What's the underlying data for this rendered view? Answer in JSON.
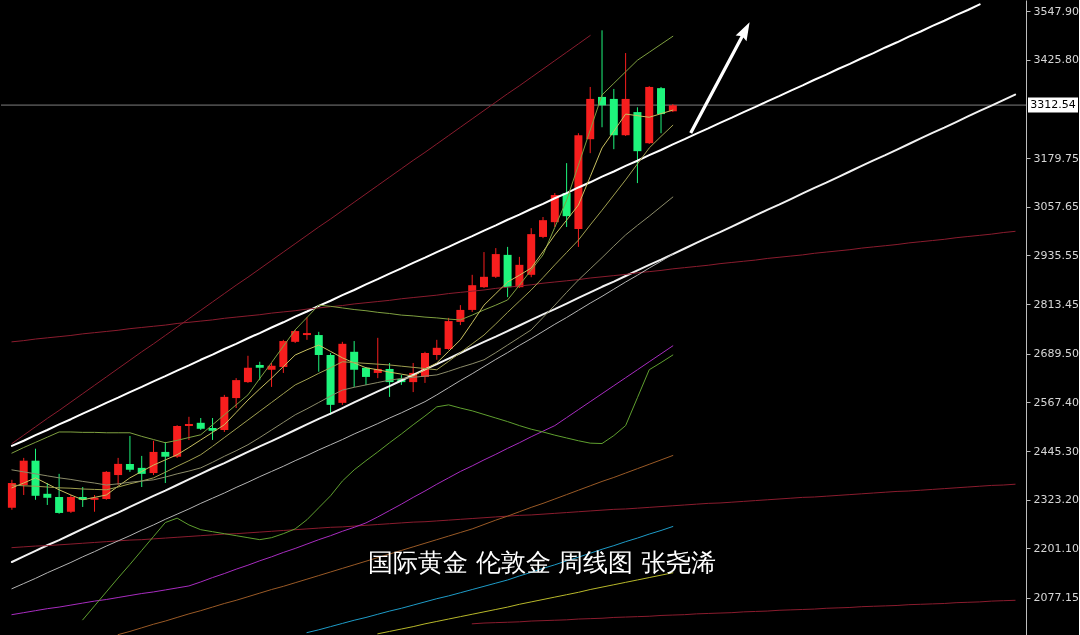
{
  "chart_data": {
    "type": "candlestick",
    "title": "国际黄金 伦敦金 周线图 张尧浠",
    "tick_labels": "y",
    "categories": [
      null,
      null,
      null,
      null,
      null,
      null,
      null,
      null,
      null,
      null,
      null,
      null,
      null,
      null,
      null,
      null,
      null,
      null,
      null,
      null,
      null,
      null,
      null,
      null,
      null,
      null,
      null,
      null,
      null,
      null,
      null,
      null,
      null,
      null,
      null,
      null,
      null,
      null,
      null,
      null,
      null,
      null,
      null,
      null,
      null,
      null,
      null,
      null,
      null,
      null,
      null,
      null,
      null,
      null,
      null,
      null,
      null,
      null,
      null,
      null,
      null,
      null,
      null,
      null,
      null,
      null,
      null,
      null,
      null,
      null,
      null,
      null,
      null,
      null,
      null,
      null,
      null,
      null,
      null,
      null,
      null,
      null,
      null,
      null,
      null,
      null
    ],
    "ylim": [
      1984,
      3576
    ],
    "yticks": [
      {
        "value": 3547.9,
        "label": "3547.90"
      },
      {
        "value": 3425.8,
        "label": "3425.80"
      },
      3179.75,
      3057.65,
      2935.55,
      2813.45,
      {
        "value": 2689.5,
        "label": "2689.50"
      },
      {
        "value": 2567.4,
        "label": "2567.40"
      },
      {
        "value": 2445.3,
        "label": "2445.30"
      },
      {
        "value": 2323.2,
        "label": "2323.20"
      },
      {
        "value": 2201.1,
        "label": "2201.10"
      },
      2077.15
    ],
    "ref_lines": [
      {
        "axis": "y",
        "value": 3312.54,
        "label": "3312.54",
        "color": "#7f7f7f"
      }
    ],
    "ohlc": [
      [
        2303,
        2373,
        2298,
        2365
      ],
      [
        2360,
        2428,
        2335,
        2421
      ],
      [
        2421,
        2451,
        2323,
        2333
      ],
      [
        2338,
        2365,
        2310,
        2328
      ],
      [
        2330,
        2388,
        2288,
        2290
      ],
      [
        2293,
        2335,
        2290,
        2330
      ],
      [
        2330,
        2355,
        2305,
        2323
      ],
      [
        2323,
        2335,
        2293,
        2328
      ],
      [
        2325,
        2395,
        2323,
        2393
      ],
      [
        2385,
        2428,
        2360,
        2413
      ],
      [
        2413,
        2483,
        2393,
        2398
      ],
      [
        2403,
        2433,
        2355,
        2388
      ],
      [
        2390,
        2471,
        2385,
        2443
      ],
      [
        2443,
        2468,
        2365,
        2431
      ],
      [
        2431,
        2510,
        2428,
        2508
      ],
      [
        2508,
        2531,
        2473,
        2513
      ],
      [
        2516,
        2528,
        2498,
        2501
      ],
      [
        2503,
        2528,
        2473,
        2496
      ],
      [
        2498,
        2586,
        2493,
        2581
      ],
      [
        2578,
        2628,
        2553,
        2623
      ],
      [
        2618,
        2684,
        2616,
        2654
      ],
      [
        2661,
        2669,
        2623,
        2654
      ],
      [
        2649,
        2666,
        2606,
        2659
      ],
      [
        2656,
        2724,
        2641,
        2721
      ],
      [
        2719,
        2749,
        2716,
        2746
      ],
      [
        2736,
        2781,
        2724,
        2741
      ],
      [
        2736,
        2744,
        2644,
        2686
      ],
      [
        2686,
        2691,
        2536,
        2561
      ],
      [
        2566,
        2719,
        2561,
        2714
      ],
      [
        2694,
        2721,
        2606,
        2649
      ],
      [
        2654,
        2656,
        2611,
        2631
      ],
      [
        2641,
        2729,
        2628,
        2651
      ],
      [
        2651,
        2666,
        2581,
        2618
      ],
      [
        2626,
        2636,
        2611,
        2618
      ],
      [
        2618,
        2666,
        2593,
        2641
      ],
      [
        2631,
        2694,
        2616,
        2691
      ],
      [
        2686,
        2724,
        2674,
        2704
      ],
      [
        2701,
        2779,
        2699,
        2771
      ],
      [
        2769,
        2811,
        2761,
        2799
      ],
      [
        2799,
        2887,
        2794,
        2861
      ],
      [
        2856,
        2944,
        2854,
        2882
      ],
      [
        2882,
        2954,
        2879,
        2939
      ],
      [
        2937,
        2957,
        2831,
        2856
      ],
      [
        2856,
        2932,
        2854,
        2912
      ],
      [
        2887,
        3004,
        2881,
        2989
      ],
      [
        2982,
        3032,
        2979,
        3024
      ],
      [
        3019,
        3092,
        3007,
        3087
      ],
      [
        3092,
        3167,
        3007,
        3034
      ],
      [
        3002,
        3242,
        2957,
        3237
      ],
      [
        3227,
        3358,
        3192,
        3328
      ],
      [
        3333,
        3500,
        3257,
        3312
      ],
      [
        3328,
        3353,
        3202,
        3237
      ],
      [
        3237,
        3443,
        3235,
        3328
      ],
      [
        3295,
        3307,
        3117,
        3197
      ],
      [
        3217,
        3360,
        3215,
        3358
      ],
      [
        3355,
        3358,
        3242,
        3290
      ],
      [
        3297,
        3315,
        3295,
        3312
      ],
      null,
      null,
      null,
      null,
      null,
      null,
      null,
      null,
      null,
      null,
      null,
      null,
      null,
      null,
      null,
      null,
      null,
      null,
      null,
      null,
      null,
      null,
      null,
      null,
      null,
      null,
      null,
      null,
      null
    ],
    "colors": [
      "#f71e1e",
      "#f71e1e",
      "#1ef57c",
      "#1ef57c",
      "#1ef57c",
      "#f71e1e",
      "#1ef57c",
      "#f71e1e",
      "#f71e1e",
      "#f71e1e",
      "#1ef57c",
      "#1ef57c",
      "#f71e1e",
      "#1ef57c",
      "#f71e1e",
      "#f71e1e",
      "#1ef57c",
      "#1ef57c",
      "#f71e1e",
      "#f71e1e",
      "#f71e1e",
      "#1ef57c",
      "#f71e1e",
      "#f71e1e",
      "#f71e1e",
      "#f71e1e",
      "#1ef57c",
      "#1ef57c",
      "#f71e1e",
      "#1ef57c",
      "#1ef57c",
      "#f71e1e",
      "#1ef57c",
      "#1ef57c",
      "#f71e1e",
      "#f71e1e",
      "#f71e1e",
      "#f71e1e",
      "#f71e1e",
      "#f71e1e",
      "#f71e1e",
      "#f71e1e",
      "#1ef57c",
      "#f71e1e",
      "#f71e1e",
      "#f71e1e",
      "#f71e1e",
      "#1ef57c",
      "#f71e1e",
      "#f71e1e",
      "#1ef57c",
      "#1ef57c",
      "#f71e1e",
      "#1ef57c",
      "#f71e1e",
      "#1ef57c",
      "#f71e1e",
      null,
      null,
      null,
      null,
      null,
      null,
      null,
      null,
      null,
      null,
      null,
      null,
      null,
      null,
      null,
      null,
      null,
      null,
      null,
      null,
      null,
      null,
      null,
      null,
      null,
      null,
      null,
      null,
      null
    ],
    "series": [
      {
        "type": "line",
        "color": "#ffffff",
        "values": [
          2458,
          2471,
          2485,
          2498,
          2512,
          2525,
          2539,
          2552,
          2566,
          2579,
          2593,
          2606,
          2620,
          2633,
          2647,
          2660,
          2674,
          2687,
          2701,
          2714,
          2728,
          2741,
          2755,
          2768,
          2782,
          2795,
          2809,
          2822,
          2836,
          2849,
          2863,
          2876,
          2890,
          2903,
          2917,
          2930,
          2944,
          2957,
          2971,
          2984,
          2998,
          3011,
          3025,
          3038,
          3052,
          3065,
          3079,
          3092,
          3106,
          3119,
          3133,
          3146,
          3160,
          3173,
          3187,
          3200,
          3214,
          3227,
          3241,
          3254,
          3268,
          3281,
          3295,
          3308,
          3322,
          3335,
          3349,
          3362,
          3376,
          3389,
          3403,
          3416,
          3430,
          3443,
          3457,
          3470,
          3484,
          3497,
          3511,
          3524,
          3538,
          3551,
          3565,
          null,
          null,
          null
        ]
      },
      {
        "type": "line",
        "color": "#f2f2f2",
        "values": [
          2167,
          2181,
          2195,
          2209,
          2222,
          2236,
          2250,
          2264,
          2278,
          2291,
          2305,
          2319,
          2333,
          2346,
          2360,
          2374,
          2388,
          2402,
          2415,
          2429,
          2443,
          2457,
          2470,
          2484,
          2498,
          2512,
          2526,
          2539,
          2553,
          2567,
          2581,
          2595,
          2608,
          2622,
          2636,
          2650,
          2663,
          2677,
          2691,
          2705,
          2719,
          2732,
          2746,
          2760,
          2774,
          2788,
          2801,
          2815,
          2829,
          2843,
          2857,
          2870,
          2884,
          2898,
          2912,
          2925,
          2939,
          2953,
          2967,
          2981,
          2994,
          3008,
          3022,
          3036,
          3050,
          3063,
          3077,
          3091,
          3105,
          3118,
          3132,
          3146,
          3160,
          3174,
          3187,
          3201,
          3215,
          3229,
          3243,
          3256,
          3270,
          3284,
          3298,
          3311,
          3325,
          3339
        ]
      },
      {
        "type": "line",
        "color": "#8a1c2e",
        "values": [
          2719,
          2722,
          2726,
          2729,
          2732,
          2735,
          2739,
          2742,
          2745,
          2748,
          2752,
          2755,
          2758,
          2761,
          2765,
          2768,
          2771,
          2774,
          2778,
          2781,
          2784,
          2787,
          2791,
          2794,
          2797,
          2801,
          2804,
          2807,
          2810,
          2814,
          2817,
          2820,
          2823,
          2827,
          2830,
          2833,
          2836,
          2840,
          2843,
          2846,
          2849,
          2853,
          2856,
          2859,
          2862,
          2866,
          2869,
          2872,
          2875,
          2879,
          2882,
          2885,
          2888,
          2892,
          2895,
          2898,
          2902,
          2905,
          2908,
          2911,
          2915,
          2918,
          2921,
          2924,
          2928,
          2931,
          2934,
          2937,
          2941,
          2944,
          2947,
          2950,
          2954,
          2957,
          2960,
          2963,
          2967,
          2970,
          2973,
          2976,
          2980,
          2983,
          2986,
          2989,
          2993,
          2996
        ]
      },
      {
        "type": "line",
        "color": "#8a1c2e",
        "values": [
          2203,
          2205,
          2207,
          2208,
          2210,
          2212,
          2214,
          2216,
          2218,
          2220,
          2222,
          2223,
          2225,
          2227,
          2229,
          2231,
          2233,
          2235,
          2237,
          2238,
          2240,
          2242,
          2244,
          2246,
          2248,
          2250,
          2252,
          2254,
          2255,
          2257,
          2259,
          2261,
          2263,
          2265,
          2267,
          2268,
          2270,
          2272,
          2274,
          2276,
          2278,
          2280,
          2282,
          2284,
          2285,
          2287,
          2289,
          2291,
          2293,
          2295,
          2297,
          2299,
          2300,
          2302,
          2304,
          2306,
          2308,
          2310,
          2312,
          2314,
          2315,
          2317,
          2319,
          2321,
          2323,
          2325,
          2327,
          2329,
          2330,
          2332,
          2334,
          2336,
          2338,
          2340,
          2342,
          2344,
          2345,
          2347,
          2349,
          2351,
          2353,
          2355,
          2357,
          2359,
          2360,
          2362
        ]
      },
      {
        "type": "line",
        "color": "#8a1c2e",
        "values": [
          null,
          null,
          null,
          null,
          null,
          null,
          null,
          null,
          null,
          null,
          null,
          null,
          null,
          null,
          null,
          null,
          null,
          null,
          null,
          null,
          null,
          null,
          null,
          null,
          null,
          null,
          null,
          null,
          null,
          null,
          null,
          null,
          null,
          null,
          null,
          null,
          null,
          null,
          null,
          2012,
          2014,
          2015,
          2016,
          2017,
          2019,
          2020,
          2021,
          2022,
          2024,
          2025,
          2026,
          2028,
          2029,
          2030,
          2031,
          2033,
          2034,
          2035,
          2037,
          2038,
          2039,
          2040,
          2042,
          2043,
          2044,
          2046,
          2047,
          2048,
          2049,
          2051,
          2052,
          2053,
          2055,
          2056,
          2057,
          2058,
          2060,
          2061,
          2062,
          2063,
          2065,
          2066,
          2067,
          2069,
          2070,
          2071
        ]
      },
      {
        "type": "line",
        "color": "#8a1c2e",
        "values": [
          2464,
          2485,
          2506,
          2527,
          2547,
          2568,
          2589,
          2610,
          2631,
          2652,
          2673,
          2694,
          2714,
          2735,
          2756,
          2777,
          2798,
          2819,
          2840,
          2861,
          2881,
          2902,
          2923,
          2944,
          2965,
          2986,
          3007,
          3027,
          3048,
          3069,
          3090,
          3111,
          3132,
          3153,
          3174,
          3194,
          3215,
          3236,
          3257,
          3278,
          3299,
          3320,
          3341,
          3361,
          3382,
          3403,
          3424,
          3445,
          3466,
          3487,
          null,
          null,
          null,
          null,
          null,
          null,
          null,
          null,
          null,
          null,
          null,
          null,
          null,
          null,
          null,
          null,
          null,
          null,
          null,
          null,
          null,
          null,
          null,
          null,
          null,
          null,
          null,
          null,
          null,
          null,
          null,
          null,
          null,
          null,
          null,
          null
        ]
      },
      {
        "type": "line",
        "color": "#a82cc0",
        "values": [
          2035,
          2040,
          2045,
          2050,
          2054,
          2059,
          2064,
          2069,
          2073,
          2078,
          2083,
          2088,
          2092,
          2097,
          2102,
          2107,
          2117,
          2128,
          2138,
          2149,
          2159,
          2170,
          2180,
          2191,
          2201,
          2212,
          2223,
          2233,
          2244,
          2254,
          2265,
          2280,
          2296,
          2312,
          2329,
          2345,
          2362,
          2378,
          2394,
          2408,
          2423,
          2437,
          2452,
          2466,
          2481,
          2495,
          2509,
          2529,
          2549,
          2569,
          2589,
          2609,
          2629,
          2649,
          2669,
          2689,
          2709,
          null,
          null,
          null,
          null,
          null,
          null,
          null,
          null,
          null,
          null,
          null,
          null,
          null,
          null,
          null,
          null,
          null,
          null,
          null,
          null,
          null,
          null,
          null,
          null,
          null,
          null,
          null,
          null,
          null
        ]
      },
      {
        "type": "line",
        "color": "#9a5a26",
        "values": [
          null,
          null,
          null,
          null,
          null,
          null,
          null,
          null,
          null,
          1985,
          1993,
          2002,
          2011,
          2019,
          2028,
          2037,
          2045,
          2054,
          2063,
          2071,
          2080,
          2089,
          2098,
          2106,
          2115,
          2124,
          2133,
          2142,
          2151,
          2160,
          2169,
          2178,
          2187,
          2196,
          2205,
          2214,
          2223,
          2232,
          2241,
          2250,
          2261,
          2272,
          2282,
          2293,
          2304,
          2314,
          2325,
          2336,
          2347,
          2358,
          2369,
          2379,
          2390,
          2401,
          2412,
          2423,
          2434,
          null,
          null,
          null,
          null,
          null,
          null,
          null,
          null,
          null,
          null,
          null,
          null,
          null,
          null,
          null,
          null,
          null,
          null,
          null,
          null,
          null,
          null,
          null,
          null,
          null,
          null,
          null,
          null,
          null
        ]
      },
      {
        "type": "line",
        "color": "#1e9cc8",
        "values": [
          null,
          null,
          null,
          null,
          null,
          null,
          null,
          null,
          null,
          null,
          null,
          null,
          null,
          null,
          null,
          null,
          null,
          null,
          null,
          null,
          null,
          null,
          null,
          null,
          null,
          1990,
          1997,
          2005,
          2013,
          2021,
          2028,
          2036,
          2044,
          2051,
          2059,
          2067,
          2075,
          2082,
          2090,
          2098,
          2106,
          2114,
          2122,
          2132,
          2141,
          2151,
          2160,
          2170,
          2179,
          2189,
          2199,
          2208,
          2218,
          2227,
          2237,
          2246,
          2256,
          null,
          null,
          null,
          null,
          null,
          null,
          null,
          null,
          null,
          null,
          null,
          null,
          null,
          null,
          null,
          null,
          null,
          null,
          null,
          null,
          null,
          null,
          null,
          null,
          null,
          null,
          null,
          null,
          null
        ]
      },
      {
        "type": "line",
        "color": "#b8b82a",
        "values": [
          null,
          null,
          null,
          null,
          null,
          null,
          null,
          null,
          null,
          null,
          null,
          null,
          null,
          null,
          null,
          null,
          null,
          null,
          null,
          null,
          null,
          null,
          null,
          null,
          null,
          null,
          null,
          null,
          null,
          null,
          null,
          1987,
          1993,
          1999,
          2005,
          2012,
          2018,
          2024,
          2030,
          2036,
          2042,
          2048,
          2054,
          2061,
          2067,
          2073,
          2079,
          2085,
          2091,
          2098,
          2104,
          2110,
          2116,
          2122,
          2128,
          2134,
          2140,
          null,
          null,
          null,
          null,
          null,
          null,
          null,
          null,
          null,
          null,
          null,
          null,
          null,
          null,
          null,
          null,
          null,
          null,
          null,
          null,
          null,
          null,
          null,
          null,
          null,
          null,
          null,
          null,
          null
        ]
      },
      {
        "type": "line",
        "color": "#7fa040",
        "values": [
          2440,
          2454,
          2467,
          2480,
          2493,
          2493,
          2492,
          2492,
          2491,
          2491,
          2491,
          2482,
          2474,
          2466,
          2472,
          2479,
          2486,
          2511,
          2536,
          2561,
          2586,
          2627,
          2667,
          2708,
          2749,
          2780,
          2811,
          2808,
          2804,
          2800,
          2797,
          2793,
          2790,
          2786,
          2784,
          2781,
          2779,
          2776,
          2774,
          2786,
          2799,
          2811,
          2824,
          2861,
          2899,
          2937,
          3006,
          3074,
          3162,
          3250,
          3338,
          3367,
          3396,
          3425,
          3445,
          3465,
          3485,
          null,
          null,
          null,
          null,
          null,
          null,
          null,
          null,
          null,
          null,
          null,
          null,
          null,
          null,
          null,
          null,
          null,
          null,
          null,
          null,
          null,
          null,
          null,
          null,
          null,
          null,
          null,
          null,
          null
        ]
      },
      {
        "type": "line",
        "color": "#5f9f2f",
        "values": [
          null,
          null,
          null,
          null,
          null,
          null,
          2022,
          2057,
          2092,
          2127,
          2161,
          2196,
          2231,
          2266,
          2277,
          2260,
          2248,
          2243,
          2238,
          2233,
          2228,
          2223,
          2228,
          2238,
          2250,
          2273,
          2303,
          2333,
          2370,
          2398,
          2421,
          2443,
          2466,
          2488,
          2511,
          2533,
          2556,
          2561,
          2553,
          2546,
          2537,
          2528,
          2519,
          2509,
          2500,
          2493,
          2485,
          2478,
          2471,
          2465,
          2464,
          2484,
          2509,
          2579,
          2649,
          2667,
          2686,
          null,
          null,
          null,
          null,
          null,
          null,
          null,
          null,
          null,
          null,
          null,
          null,
          null,
          null,
          null,
          null,
          null,
          null,
          null,
          null,
          null,
          null,
          null,
          null,
          null,
          null,
          null,
          null,
          null
        ]
      },
      {
        "type": "line",
        "color": "#c8c060",
        "values": [
          2353,
          2365,
          2378,
          2363,
          2348,
          2335,
          2323,
          2329,
          2335,
          2357,
          2378,
          2394,
          2410,
          2423,
          2436,
          2454,
          2473,
          2492,
          2511,
          2542,
          2573,
          2601,
          2628,
          2657,
          2686,
          2699,
          2711,
          2695,
          2679,
          2666,
          2654,
          2649,
          2643,
          2638,
          2633,
          2650,
          2666,
          2695,
          2724,
          2767,
          2811,
          2840,
          2869,
          2886,
          2904,
          2945,
          2987,
          3024,
          3062,
          3133,
          3205,
          3247,
          3290,
          3286,
          3282,
          3291,
          3300,
          null,
          null,
          null,
          null,
          null,
          null,
          null,
          null,
          null,
          null,
          null,
          null,
          null,
          null,
          null,
          null,
          null,
          null,
          null,
          null,
          null,
          null,
          null,
          null,
          null,
          null,
          null,
          null,
          null
        ]
      },
      {
        "type": "line",
        "color": "#a0a050",
        "values": [
          2360,
          2358,
          2357,
          2355,
          2353,
          2352,
          2350,
          2349,
          2348,
          2355,
          2363,
          2370,
          2378,
          2392,
          2407,
          2421,
          2436,
          2457,
          2479,
          2501,
          2523,
          2545,
          2567,
          2589,
          2611,
          2625,
          2640,
          2654,
          2669,
          2667,
          2665,
          2663,
          2661,
          2658,
          2655,
          2652,
          2649,
          2670,
          2692,
          2714,
          2736,
          2764,
          2793,
          2821,
          2849,
          2880,
          2912,
          2943,
          2974,
          3012,
          3049,
          3087,
          3125,
          3165,
          3205,
          3234,
          3262,
          null,
          null,
          null,
          null,
          null,
          null,
          null,
          null,
          null,
          null,
          null,
          null,
          null,
          null,
          null,
          null,
          null,
          null,
          null,
          null,
          null,
          null,
          null,
          null,
          null,
          null,
          null,
          null,
          null
        ]
      },
      {
        "type": "line",
        "color": "#8c8c6a",
        "values": [
          2398,
          2393,
          2388,
          2383,
          2378,
          2374,
          2369,
          2365,
          2360,
          2363,
          2367,
          2370,
          2373,
          2380,
          2388,
          2395,
          2403,
          2417,
          2432,
          2446,
          2461,
          2479,
          2498,
          2517,
          2536,
          2551,
          2567,
          2583,
          2598,
          2605,
          2611,
          2617,
          2623,
          2627,
          2630,
          2633,
          2636,
          2645,
          2655,
          2664,
          2674,
          2692,
          2711,
          2730,
          2749,
          2780,
          2811,
          2843,
          2874,
          2902,
          2930,
          2959,
          2987,
          3011,
          3034,
          3058,
          3082,
          null,
          null,
          null,
          null,
          null,
          null,
          null,
          null,
          null,
          null,
          null,
          null,
          null,
          null,
          null,
          null,
          null,
          null,
          null,
          null,
          null,
          null,
          null,
          null,
          null,
          null,
          null,
          null,
          null
        ]
      },
      {
        "type": "line",
        "color": "#b4b4b4",
        "values": [
          2100,
          2113,
          2126,
          2140,
          2153,
          2166,
          2180,
          2193,
          2207,
          2220,
          2233,
          2247,
          2260,
          2274,
          2287,
          2300,
          2314,
          2327,
          2340,
          2354,
          2367,
          2381,
          2394,
          2407,
          2421,
          2434,
          2448,
          2461,
          2474,
          2488,
          2501,
          2514,
          2528,
          2541,
          2555,
          2569,
          2586,
          2604,
          2622,
          2639,
          2657,
          2675,
          2692,
          2710,
          2727,
          2745,
          2763,
          2780,
          2798,
          2816,
          2833,
          2851,
          2869,
          2886,
          2904,
          2921,
          2939,
          null,
          null,
          null,
          null,
          null,
          null,
          null,
          null,
          null,
          null,
          null,
          null,
          null,
          null,
          null,
          null,
          null,
          null,
          null,
          null,
          null,
          null,
          null,
          null,
          null,
          null,
          null,
          null,
          null
        ]
      }
    ]
  }
}
